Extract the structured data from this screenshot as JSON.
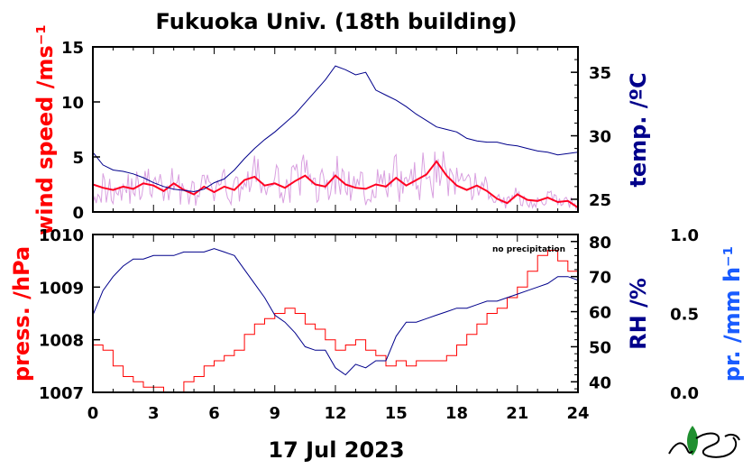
{
  "title": "Fukuoka Univ. (18th building)",
  "date_label": "17 Jul 2023",
  "precip_note": "no precipitation",
  "colors": {
    "wind_raw": "#d9a0e0",
    "wind_mean": "#ff0022",
    "temperature": "#00008b",
    "pressure": "#ff0000",
    "rh": "#00008b",
    "precip_axis": "#1a5cff",
    "wind_axis_label": "#ff0000",
    "temp_axis_label": "#00008b",
    "press_axis_label": "#ff0000",
    "rh_axis_label": "#00008b"
  },
  "chart_data": [
    {
      "type": "line",
      "panel": "top",
      "xlim": [
        0,
        24
      ],
      "xticks": [
        0,
        3,
        6,
        9,
        12,
        15,
        18,
        21,
        24
      ],
      "left_axis": {
        "label": "wind speed /ms⁻¹",
        "range": [
          0,
          15
        ],
        "ticks": [
          "0",
          "5",
          "10",
          "15"
        ]
      },
      "right_axis": {
        "label": "temp. /ºC",
        "range": [
          24,
          37
        ],
        "ticks": [
          "25",
          "30",
          "35"
        ]
      },
      "series": [
        {
          "axis": "left",
          "x": [
            0,
            0.5,
            1,
            1.5,
            2,
            2.5,
            3,
            3.5,
            4,
            4.5,
            5,
            5.5,
            6,
            6.5,
            7,
            7.5,
            8,
            8.5,
            9,
            9.5,
            10,
            10.5,
            11,
            11.5,
            12,
            12.5,
            13,
            13.5,
            14,
            14.5,
            15,
            15.5,
            16,
            16.5,
            17,
            17.5,
            18,
            18.5,
            19,
            19.5,
            20,
            20.5,
            21,
            21.5,
            22,
            22.5,
            23,
            23.5,
            24
          ],
          "y": [
            2.5,
            2.2,
            2.0,
            2.3,
            2.1,
            2.6,
            2.4,
            1.9,
            2.6,
            2.0,
            1.6,
            2.3,
            1.8,
            2.3,
            2.0,
            2.9,
            3.2,
            2.4,
            2.6,
            2.2,
            2.8,
            3.3,
            2.5,
            2.3,
            3.3,
            2.5,
            2.2,
            2.1,
            2.5,
            2.3,
            3.1,
            2.4,
            2.9,
            3.4,
            4.6,
            3.3,
            2.4,
            2.0,
            2.4,
            1.9,
            1.2,
            0.8,
            1.6,
            1.1,
            1.0,
            1.3,
            0.9,
            1.0,
            0.4
          ]
        },
        {
          "axis": "right",
          "x": [
            0,
            0.5,
            1,
            1.5,
            2,
            2.5,
            3,
            3.5,
            4,
            4.5,
            5,
            5.5,
            6,
            6.5,
            7,
            7.5,
            8,
            8.5,
            9,
            9.5,
            10,
            10.5,
            11,
            11.5,
            12,
            12.5,
            13,
            13.5,
            14,
            14.5,
            15,
            15.5,
            16,
            16.5,
            17,
            17.5,
            18,
            18.5,
            19,
            19.5,
            20,
            20.5,
            21,
            21.5,
            22,
            22.5,
            23,
            23.5,
            24
          ],
          "y": [
            28.7,
            27.7,
            27.3,
            27.2,
            27.0,
            26.7,
            26.3,
            26.0,
            25.8,
            25.7,
            25.6,
            25.8,
            26.3,
            26.6,
            27.3,
            28.2,
            29.0,
            29.7,
            30.3,
            31.0,
            31.7,
            32.6,
            33.5,
            34.4,
            35.5,
            35.2,
            34.8,
            35.0,
            33.6,
            33.2,
            32.8,
            32.3,
            31.7,
            31.2,
            30.7,
            30.5,
            30.3,
            29.8,
            29.6,
            29.5,
            29.5,
            29.3,
            29.2,
            29.0,
            28.8,
            28.7,
            28.5,
            28.6,
            28.7
          ]
        }
      ]
    },
    {
      "type": "line",
      "panel": "bottom",
      "xlim": [
        0,
        24
      ],
      "xticks": [
        0,
        3,
        6,
        9,
        12,
        15,
        18,
        21,
        24
      ],
      "xtick_labels": [
        "0",
        "3",
        "6",
        "9",
        "12",
        "15",
        "18",
        "21",
        "24"
      ],
      "xlabel": "17 Jul 2023",
      "left_axis": {
        "label": "press. /hPa",
        "range": [
          1007,
          1010
        ],
        "ticks": [
          "1007",
          "1008",
          "1009",
          "1010"
        ]
      },
      "right_axis": {
        "label": "RH /%",
        "range": [
          37,
          82
        ],
        "ticks": [
          "40",
          "50",
          "60",
          "70",
          "80"
        ]
      },
      "far_right_axis": {
        "label": "pr. /mm h⁻¹",
        "range": [
          0,
          1
        ],
        "ticks": [
          "0.0",
          "0.5",
          "1.0"
        ]
      },
      "series": [
        {
          "axis": "left",
          "x": [
            0,
            0.5,
            1,
            1.5,
            2,
            2.5,
            3,
            3.5,
            4,
            4.5,
            5,
            5.5,
            6,
            6.5,
            7,
            7.5,
            8,
            8.5,
            9,
            9.5,
            10,
            10.5,
            11,
            11.5,
            12,
            12.5,
            13,
            13.5,
            14,
            14.5,
            15,
            15.5,
            16,
            16.5,
            17,
            17.5,
            18,
            18.5,
            19,
            19.5,
            20,
            20.5,
            21,
            21.5,
            22,
            22.5,
            23,
            23.5,
            24
          ],
          "y": [
            1007.9,
            1007.8,
            1007.5,
            1007.3,
            1007.2,
            1007.1,
            1007.1,
            1007.0,
            1007.0,
            1007.2,
            1007.3,
            1007.5,
            1007.6,
            1007.7,
            1007.8,
            1008.1,
            1008.3,
            1008.4,
            1008.5,
            1008.6,
            1008.5,
            1008.3,
            1008.2,
            1008.0,
            1007.8,
            1007.9,
            1008.0,
            1007.8,
            1007.7,
            1007.5,
            1007.6,
            1007.5,
            1007.6,
            1007.6,
            1007.6,
            1007.7,
            1007.9,
            1008.1,
            1008.3,
            1008.5,
            1008.6,
            1008.8,
            1009.0,
            1009.3,
            1009.6,
            1009.7,
            1009.5,
            1009.3,
            1009.2
          ]
        },
        {
          "axis": "right",
          "x": [
            0,
            0.5,
            1,
            1.5,
            2,
            2.5,
            3,
            3.5,
            4,
            4.5,
            5,
            5.5,
            6,
            6.5,
            7,
            7.5,
            8,
            8.5,
            9,
            9.5,
            10,
            10.5,
            11,
            11.5,
            12,
            12.5,
            13,
            13.5,
            14,
            14.5,
            15,
            15.5,
            16,
            16.5,
            17,
            17.5,
            18,
            18.5,
            19,
            19.5,
            20,
            20.5,
            21,
            21.5,
            22,
            22.5,
            23,
            23.5,
            24
          ],
          "y": [
            59,
            66,
            70,
            73,
            75,
            75,
            76,
            76,
            76,
            77,
            77,
            77,
            78,
            77,
            76,
            72,
            68,
            64,
            59,
            57,
            54,
            50,
            49,
            49,
            44,
            42,
            45,
            44,
            46,
            46,
            53,
            57,
            57,
            58,
            59,
            60,
            61,
            61,
            62,
            63,
            63,
            64,
            65,
            66,
            67,
            68,
            70,
            70,
            69
          ]
        }
      ],
      "annotation": "no precipitation"
    }
  ]
}
